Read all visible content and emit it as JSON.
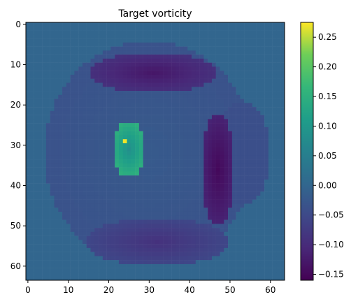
{
  "chart_data": {
    "type": "heatmap",
    "title": "Target vorticity",
    "xlabel": "",
    "ylabel": "",
    "grid_size": [
      64,
      64
    ],
    "extent": [
      -0.5,
      63.5,
      63.5,
      -0.5
    ],
    "xlim": [
      -0.5,
      63.5
    ],
    "ylim": [
      63.5,
      -0.5
    ],
    "x_ticks": [
      0,
      10,
      20,
      30,
      40,
      50,
      60
    ],
    "x_tick_labels": [
      "0",
      "10",
      "20",
      "30",
      "40",
      "50",
      "60"
    ],
    "y_ticks": [
      0,
      10,
      20,
      30,
      40,
      50,
      60
    ],
    "y_tick_labels": [
      "0",
      "10",
      "20",
      "30",
      "40",
      "50",
      "60"
    ],
    "colormap": "viridis",
    "vmin": -0.16,
    "vmax": 0.275,
    "colorbar_ticks": [
      0.25,
      0.2,
      0.15,
      0.1,
      0.05,
      0.0,
      -0.05,
      -0.1,
      -0.15
    ],
    "colorbar_tick_labels": [
      "0.25",
      "0.20",
      "0.15",
      "0.10",
      "0.05",
      "0.00",
      "−0.05",
      "−0.10",
      "−0.15"
    ],
    "background_value": 0.0,
    "features": [
      {
        "name": "outer-ring",
        "center": [
          30,
          32
        ],
        "radius": [
          26,
          28
        ],
        "value": -0.035
      },
      {
        "name": "top-band",
        "center": [
          31,
          12
        ],
        "radius": [
          16,
          5
        ],
        "value": -0.13
      },
      {
        "name": "right-lobe",
        "center": [
          53,
          32
        ],
        "radius": [
          7,
          13
        ],
        "value": -0.04
      },
      {
        "name": "right-dark-arc",
        "center": [
          47,
          36
        ],
        "radius": [
          4,
          14
        ],
        "value": -0.15
      },
      {
        "name": "bottom-band",
        "center": [
          32,
          54
        ],
        "radius": [
          18,
          6
        ],
        "value": -0.09
      },
      {
        "name": "inner-ellipse",
        "center": [
          25,
          31
        ],
        "radius": [
          4,
          7
        ],
        "value": 0.15
      },
      {
        "name": "bright-spot",
        "center": [
          24,
          29
        ],
        "radius": [
          0.7,
          0.7
        ],
        "value": 0.27
      }
    ]
  }
}
